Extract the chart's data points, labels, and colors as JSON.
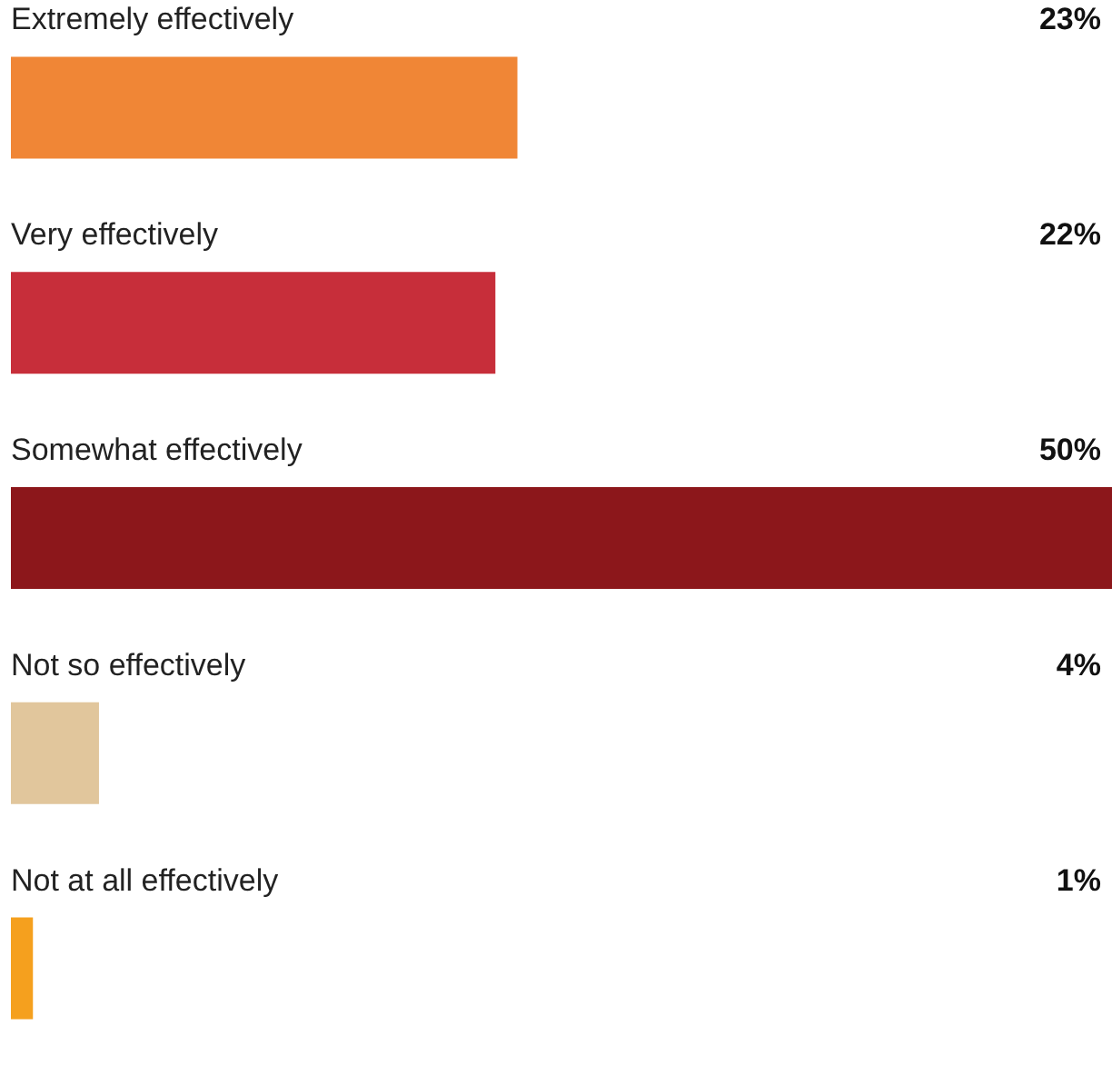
{
  "chart_data": {
    "type": "bar",
    "orientation": "horizontal",
    "categories": [
      "Extremely effectively",
      "Very effectively",
      "Somewhat effectively",
      "Not so effectively",
      "Not at all effectively"
    ],
    "values": [
      23,
      22,
      50,
      4,
      1
    ],
    "colors": [
      "#f08636",
      "#c72e3a",
      "#8c171b",
      "#e1c69c",
      "#f5a01e"
    ],
    "value_labels": [
      "23%",
      "22%",
      "50%",
      "4%",
      "1%"
    ]
  }
}
